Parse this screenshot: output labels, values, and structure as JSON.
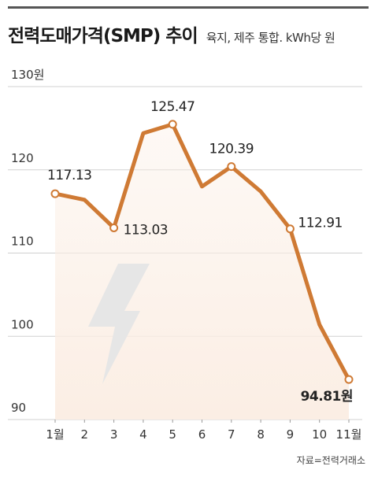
{
  "header": {
    "title": "전력도매가격(SMP) 추이",
    "subtitle": "육지, 제주 통합. kWh당 원"
  },
  "source": "자료=전력거래소",
  "colors": {
    "line": "#cf7a34",
    "marker_fill": "#ffffff",
    "grid": "#d0d0d0",
    "area_top": "#fbeee4",
    "bolt": "#e6e6e6"
  },
  "decor": {
    "icon": "lightning-bolt-icon"
  },
  "chart_data": {
    "type": "line",
    "title": "전력도매가격(SMP) 추이",
    "subtitle": "육지, 제주 통합. kWh당 원",
    "categories": [
      "1월",
      "2",
      "3",
      "4",
      "5",
      "6",
      "7",
      "8",
      "9",
      "10",
      "11월"
    ],
    "series": [
      {
        "values": [
          117.13,
          116.4,
          113.03,
          124.4,
          125.47,
          118.0,
          120.39,
          117.4,
          112.91,
          101.4,
          94.81
        ]
      }
    ],
    "labels": [
      {
        "index": 0,
        "text": "117.13"
      },
      {
        "index": 2,
        "text": "113.03"
      },
      {
        "index": 4,
        "text": "125.47"
      },
      {
        "index": 6,
        "text": "120.39"
      },
      {
        "index": 8,
        "text": "112.91"
      },
      {
        "index": 10,
        "text": "94.81원"
      }
    ],
    "yticks": [
      "90",
      "100",
      "110",
      "120",
      "130원"
    ],
    "ylim": [
      90,
      130
    ],
    "grid": true
  }
}
